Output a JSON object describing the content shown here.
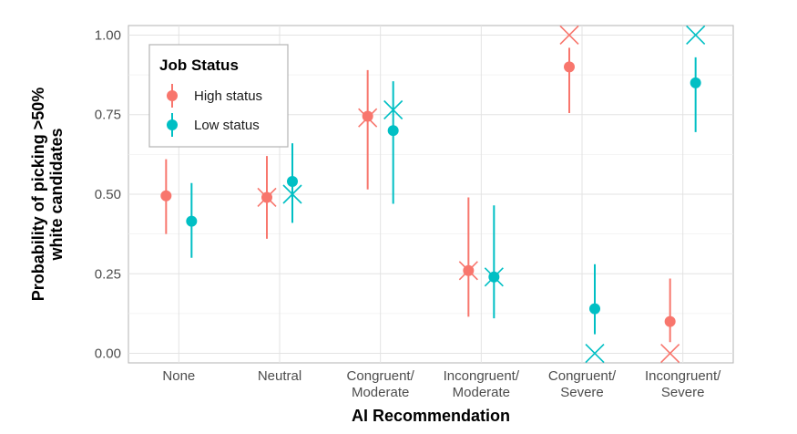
{
  "chart_data": {
    "type": "scatter",
    "xlabel": "AI Recommendation",
    "ylabel_lines": [
      "Probability of picking >50%",
      "white candidates"
    ],
    "categories": [
      [
        "None"
      ],
      [
        "Neutral"
      ],
      [
        "Congruent/",
        "Moderate"
      ],
      [
        "Incongruent/",
        "Moderate"
      ],
      [
        "Congruent/",
        "Severe"
      ],
      [
        "Incongruent/",
        "Severe"
      ]
    ],
    "ylim": [
      -0.03,
      1.03
    ],
    "yticks": [
      "0.00",
      "0.25",
      "0.50",
      "0.75",
      "1.00"
    ],
    "grid": true,
    "legend": {
      "title": "Job Status",
      "position": "top-left"
    },
    "series": [
      {
        "name": "High status",
        "color": "#F8766D",
        "estimate": [
          0.495,
          0.49,
          0.745,
          0.26,
          0.9,
          0.1
        ],
        "lower": [
          0.375,
          0.36,
          0.515,
          0.115,
          0.755,
          0.035
        ],
        "upper": [
          0.61,
          0.62,
          0.89,
          0.49,
          0.96,
          0.235
        ],
        "observed": [
          null,
          0.49,
          0.74,
          0.26,
          1.0,
          0.0
        ]
      },
      {
        "name": "Low status",
        "color": "#00BFC4",
        "estimate": [
          0.415,
          0.54,
          0.7,
          0.24,
          0.14,
          0.85
        ],
        "lower": [
          0.3,
          0.41,
          0.47,
          0.11,
          0.06,
          0.695
        ],
        "upper": [
          0.535,
          0.66,
          0.855,
          0.465,
          0.28,
          0.93
        ],
        "observed": [
          null,
          0.5,
          0.765,
          0.24,
          0.0,
          1.0
        ]
      }
    ]
  }
}
